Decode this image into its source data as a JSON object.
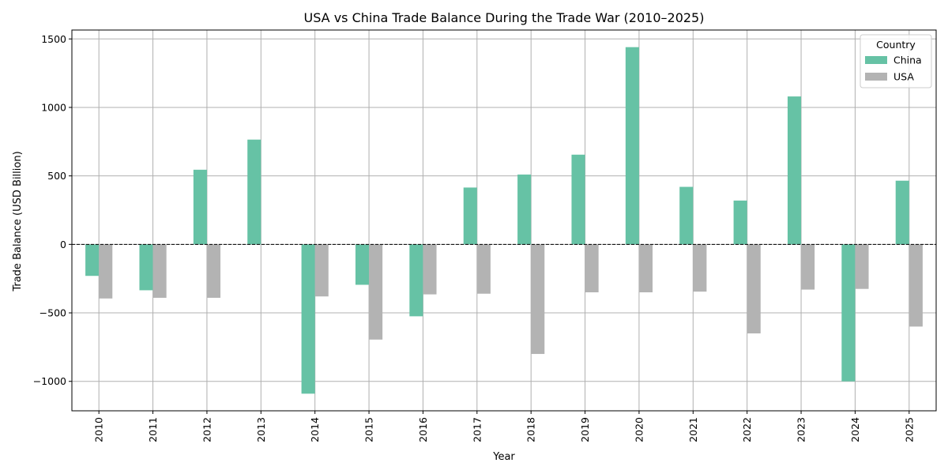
{
  "chart_data": {
    "type": "bar",
    "title": "USA vs China Trade Balance During the Trade War (2010–2025)",
    "xlabel": "Year",
    "ylabel": "Trade Balance (USD Billion)",
    "categories": [
      "2010",
      "2011",
      "2012",
      "2013",
      "2014",
      "2015",
      "2016",
      "2017",
      "2018",
      "2019",
      "2020",
      "2021",
      "2022",
      "2023",
      "2024",
      "2025"
    ],
    "series": [
      {
        "name": "China",
        "color": "#66c2a5",
        "values": [
          -230,
          -335,
          545,
          765,
          -1090,
          -295,
          -525,
          415,
          510,
          655,
          1440,
          420,
          320,
          1080,
          -1000,
          465
        ]
      },
      {
        "name": "USA",
        "color": "#b3b3b3",
        "values": [
          -395,
          -390,
          -390,
          0,
          -380,
          -695,
          -365,
          -360,
          -800,
          -350,
          -350,
          -345,
          -650,
          -330,
          -325,
          -600
        ]
      }
    ],
    "ylim": [
      -1215,
      1565
    ],
    "yticks": [
      -1000,
      -500,
      0,
      500,
      1000,
      1500
    ],
    "ytick_labels": [
      "−1000",
      "−500",
      "0",
      "500",
      "1000",
      "1500"
    ],
    "grid": true,
    "zero_line": "dashed",
    "legend": {
      "title": "Country",
      "position": "top-right",
      "entries": [
        "China",
        "USA"
      ]
    }
  }
}
